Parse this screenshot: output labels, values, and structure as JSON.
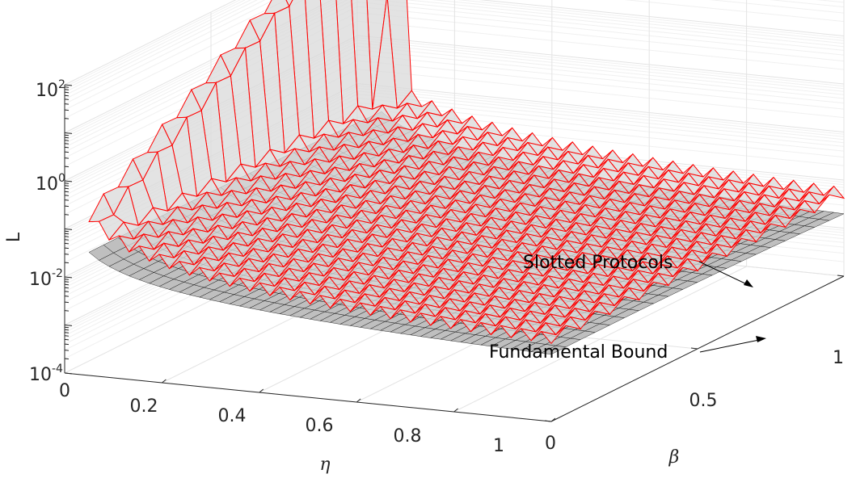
{
  "chart_data": {
    "type": "surface3d",
    "zscale": "log",
    "x": {
      "label": "η",
      "ticks": [
        "0.2",
        "0.4",
        "0.6",
        "0.8",
        "1"
      ],
      "range": [
        0.05,
        1
      ]
    },
    "y": {
      "label": "β",
      "ticks": [
        "0",
        "0.5",
        "1"
      ],
      "range": [
        0,
        1
      ]
    },
    "z": {
      "label": "L",
      "ticks": [
        {
          "base": "10",
          "exp": "-4"
        },
        {
          "base": "10",
          "exp": "-2"
        },
        {
          "base": "10",
          "exp": "0"
        },
        {
          "base": "10",
          "exp": "2"
        }
      ],
      "range": [
        -4,
        2
      ]
    },
    "origin_label": "0",
    "grid": true,
    "series": [
      {
        "name": "Slotted Protocols",
        "color": "#ff0000",
        "fill": "#d9d9d9"
      },
      {
        "name": "Fundamental Bound",
        "color": "#000000",
        "fill": "#bfbfbf"
      }
    ],
    "annotations": [
      {
        "text": "Slotted Protocols",
        "target": "Slotted Protocols"
      },
      {
        "text": "Fundamental Bound",
        "target": "Fundamental Bound"
      }
    ]
  }
}
